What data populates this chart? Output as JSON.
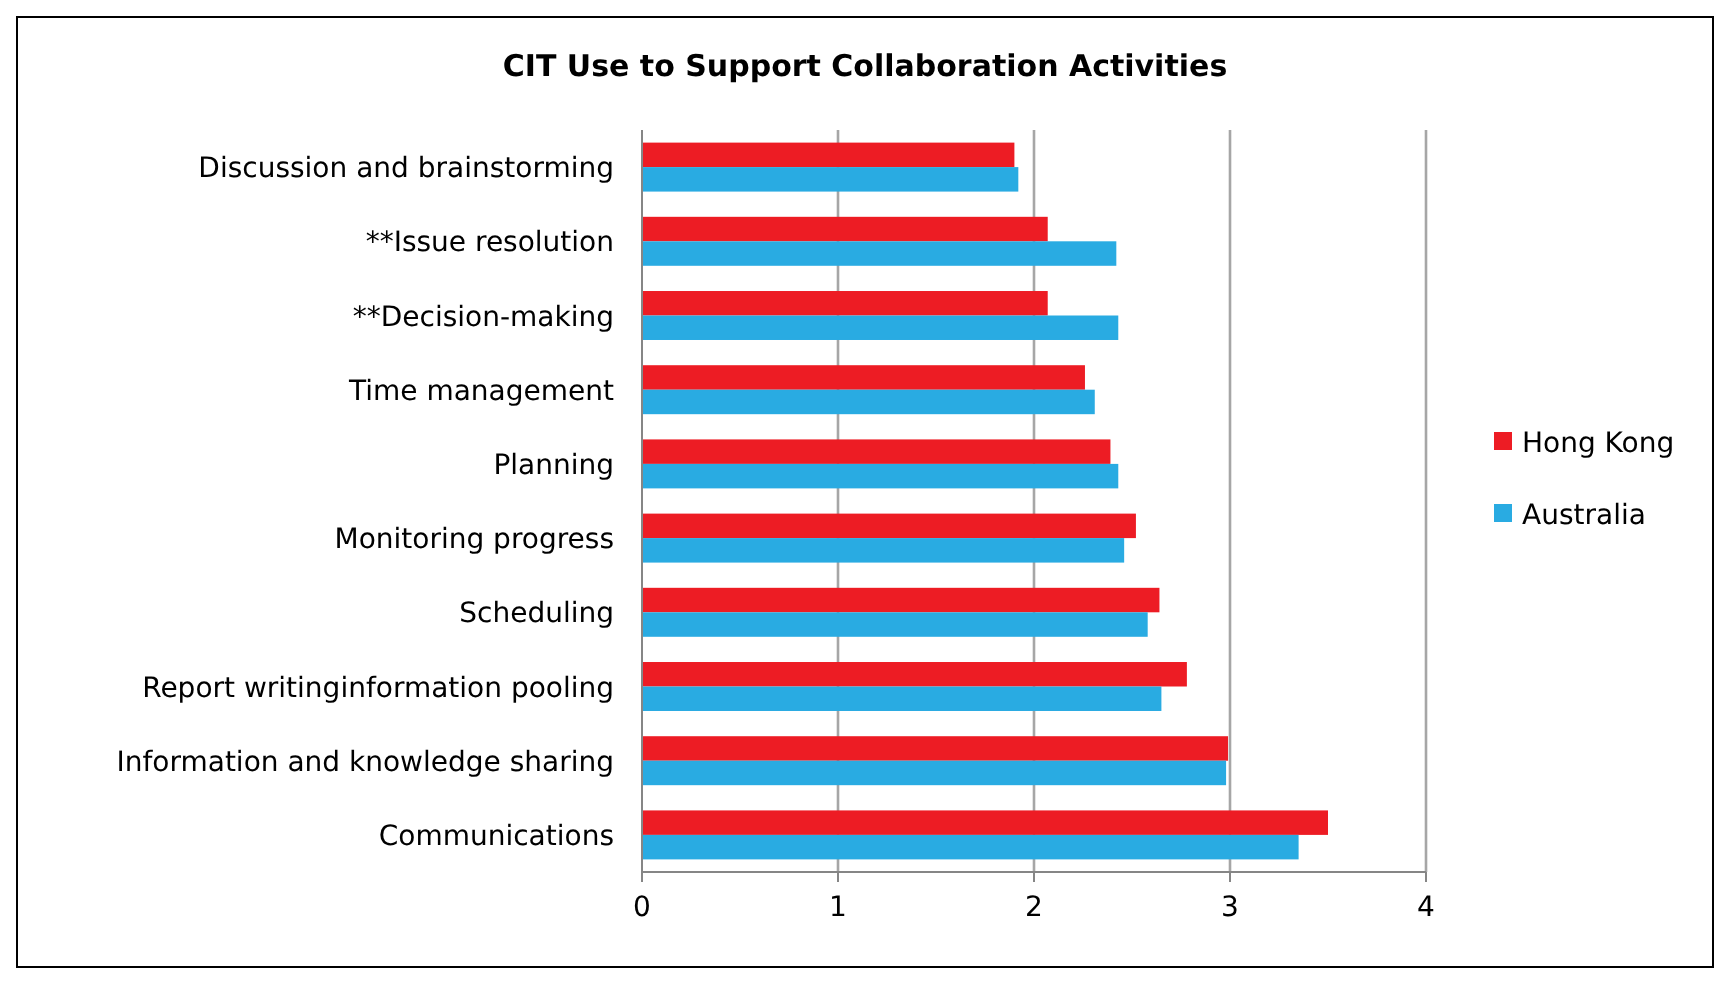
{
  "chart_data": {
    "type": "bar",
    "orientation": "horizontal",
    "title": "CIT Use to Support Collaboration Activities",
    "categories": [
      "Discussion and brainstorming",
      "**Issue resolution",
      "**Decision-making",
      "Time management",
      "Planning",
      "Monitoring progress",
      "Scheduling",
      "Report writinginformation pooling",
      "Information and knowledge sharing",
      "Communications"
    ],
    "series": [
      {
        "name": "Hong Kong",
        "color": "#ed1c24",
        "values": [
          1.9,
          2.07,
          2.07,
          2.26,
          2.39,
          2.52,
          2.64,
          2.78,
          2.99,
          3.5
        ]
      },
      {
        "name": "Australia",
        "color": "#29abe2",
        "values": [
          1.92,
          2.42,
          2.43,
          2.31,
          2.43,
          2.46,
          2.58,
          2.65,
          2.98,
          3.35
        ]
      }
    ],
    "xlim": [
      0,
      4
    ],
    "xticks": [
      0,
      1,
      2,
      3,
      4
    ],
    "grid": "x",
    "legend": "right"
  }
}
